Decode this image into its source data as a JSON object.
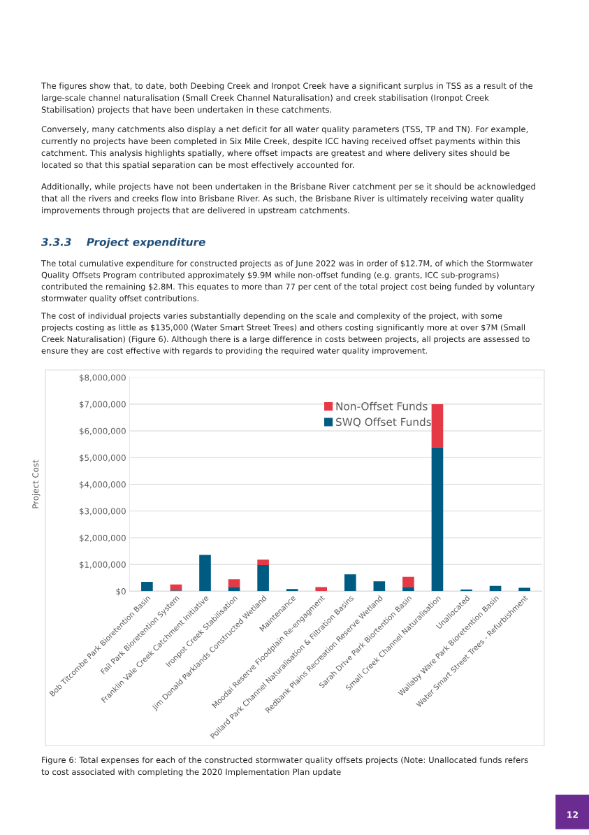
{
  "chart_data": {
    "type": "bar",
    "stacked": true,
    "ylabel": "Project Cost",
    "categories": [
      "Bob Titcombe Park Bioretention Basin",
      "Fail Park Bioretention System",
      "Franklin Vale Creek Catchment Initiative",
      "Ironpot Creek Stabilisation",
      "Jim Donald Parklands Constructed Wetland",
      "Maintenance",
      "Moodai Reserve Floodplain Re-engagment",
      "Pollard Park Channel Naturalisation & Filtration Basins",
      "Redbank Plains Recreation Reserve Wetland",
      "Sarah Drive Park Biortention Basin",
      "Small Creek Channel Naturalisation",
      "Unallocated",
      "Wallaby Ware Park Bioretention Basin",
      "Water Smart Street Trees - Refurbishment"
    ],
    "series": [
      {
        "name": "SWQ Offset Funds",
        "color": "#005b82",
        "values": [
          350000,
          30000,
          1360000,
          160000,
          980000,
          80000,
          0,
          630000,
          370000,
          160000,
          5390000,
          60000,
          200000,
          130000
        ]
      },
      {
        "name": "Non-Offset Funds",
        "color": "#e63946",
        "values": [
          0,
          220000,
          0,
          290000,
          200000,
          0,
          150000,
          0,
          0,
          380000,
          1610000,
          0,
          0,
          0
        ]
      }
    ],
    "ylim": [
      0,
      8000000
    ],
    "yticks": [
      {
        "value": 0,
        "label": "$0"
      },
      {
        "value": 1000000,
        "label": "$1,000,000"
      },
      {
        "value": 2000000,
        "label": "$2,000,000"
      },
      {
        "value": 3000000,
        "label": "$3,000,000"
      },
      {
        "value": 4000000,
        "label": "$4,000,000"
      },
      {
        "value": 5000000,
        "label": "$5,000,000"
      },
      {
        "value": 6000000,
        "label": "$6,000,000"
      },
      {
        "value": 7000000,
        "label": "$7,000,000"
      },
      {
        "value": 8000000,
        "label": "$8,000,000"
      }
    ],
    "grid": "y",
    "legend": "top",
    "annotations": [
      "The figures show that, to date, both Deebing Creek and Ironpot Creek have a significant surplus in TSS as a result of the large-scale channel naturalisation (Small Creek Channel Naturalisation) and creek stabilisation (Ironpot Creek Stabilisation) projects that have been undertaken in these catchments.",
      "Conversely, many catchments also display a net deficit for all water quality parameters (TSS, TP and TN). For example, currently no projects have been completed in Six Mile Creek, despite ICC having received offset payments within this catchment. This analysis highlights spatially, where offset impacts are greatest and where delivery sites should be located so that this spatial separation can be most effectively accounted for.",
      "Additionally, while projects have not been undertaken in the Brisbane River catchment per se it should be acknowledged that all the rivers and creeks flow into Brisbane River. As such, the Brisbane River is ultimately receiving water quality improvements through projects that are delivered in upstream catchments.",
      "3.3.3    Project expenditure",
      "The total cumulative expenditure for constructed projects as of June 2022 was in order of $12.7M, of which the Stormwater Quality Offsets Program contributed approximately $9.9M while non-offset funding (e.g. grants, ICC sub-programs) contributed the remaining $2.8M. This equates to more than 77 per cent of the total project cost being funded by voluntary stormwater quality offset contributions.",
      "The cost of individual projects varies substantially depending on the scale and complexity of the project, with some projects costing as little as $135,000 (Water Smart Street Trees) and others costing significantly more at over $7M (Small Creek Naturalisation) (Figure 6). Although there is a large difference in costs between projects, all projects are assessed to ensure they are cost effective with regards to providing the required water quality improvement.",
      "Figure 6: Total expenses for each of the constructed stormwater quality offsets projects (Note: Unallocated funds refers to cost associated with completing the 2020 Implementation Plan update",
      "12"
    ]
  }
}
